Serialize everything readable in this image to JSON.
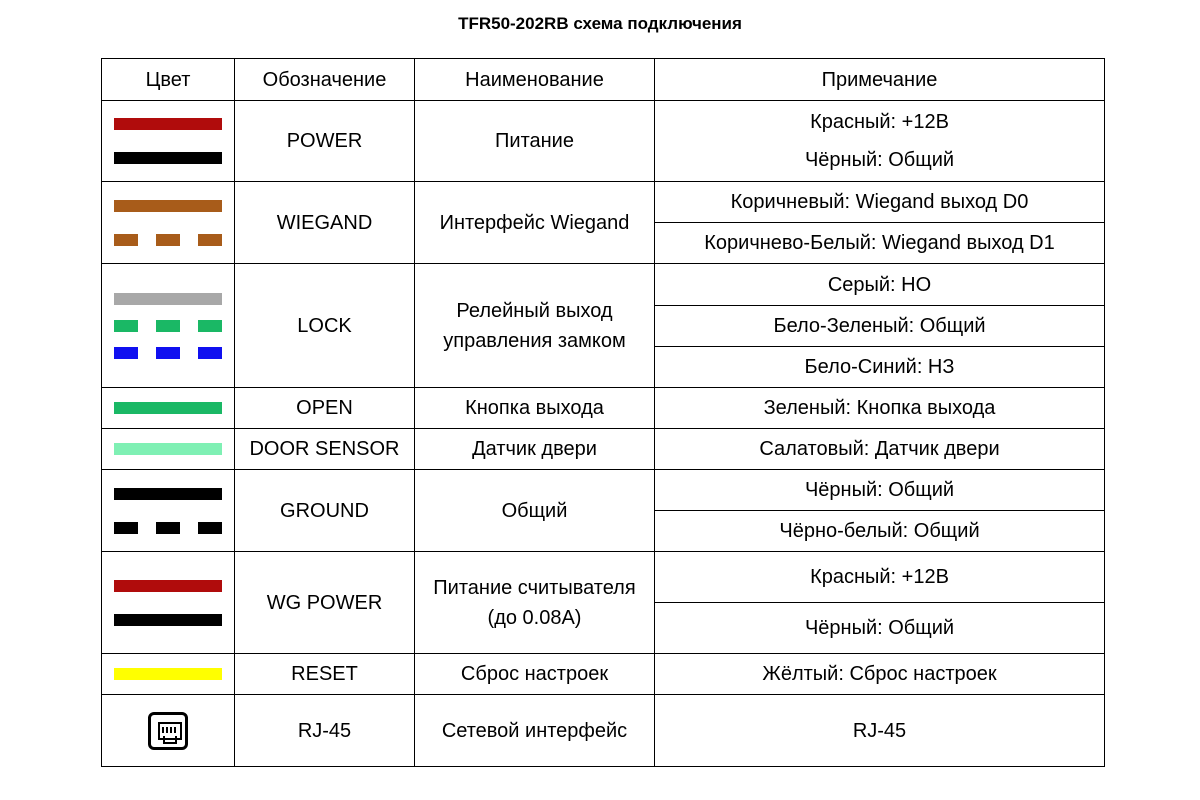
{
  "title": "TFR50-202RB схема подключения",
  "headers": {
    "color": "Цвет",
    "designation": "Обозначение",
    "name": "Наименование",
    "note": "Примечание"
  },
  "colors": {
    "red": "#b00c0c",
    "black": "#000000",
    "brown": "#a85c1a",
    "gray": "#a8a8a8",
    "green": "#1ab865",
    "blue": "#1010f0",
    "light_green": "#7ff0b4",
    "yellow": "#ffff00"
  },
  "rows": [
    {
      "designation": "POWER",
      "name": "Питание",
      "notes": [
        "Красный: +12В",
        "Чёрный: Общий"
      ]
    },
    {
      "designation": "WIEGAND",
      "name": "Интерфейс Wiegand",
      "notes": [
        "Коричневый: Wiegand выход D0",
        "Коричнево-Белый: Wiegand выход D1"
      ]
    },
    {
      "designation": "LOCK",
      "name": "Релейный выход управления замком",
      "notes": [
        "Серый: НО",
        "Бело-Зеленый: Общий",
        "Бело-Синий: НЗ"
      ]
    },
    {
      "designation": "OPEN",
      "name": "Кнопка выхода",
      "notes": [
        "Зеленый: Кнопка выхода"
      ]
    },
    {
      "designation": "DOOR SENSOR",
      "name": "Датчик двери",
      "notes": [
        "Салатовый: Датчик двери"
      ]
    },
    {
      "designation": "GROUND",
      "name": "Общий",
      "notes": [
        "Чёрный: Общий",
        "Чёрно-белый: Общий"
      ]
    },
    {
      "designation": "WG POWER",
      "name": "Питание считывателя (до 0.08А)",
      "notes": [
        "Красный: +12В",
        "Чёрный: Общий"
      ]
    },
    {
      "designation": "RESET",
      "name": "Сброс настроек",
      "notes": [
        "Жёлтый: Сброс настроек"
      ]
    },
    {
      "designation": "RJ-45",
      "name": "Сетевой интерфейс",
      "notes": [
        "RJ-45"
      ]
    }
  ],
  "icons": {
    "rj45": "ethernet-port-icon"
  }
}
